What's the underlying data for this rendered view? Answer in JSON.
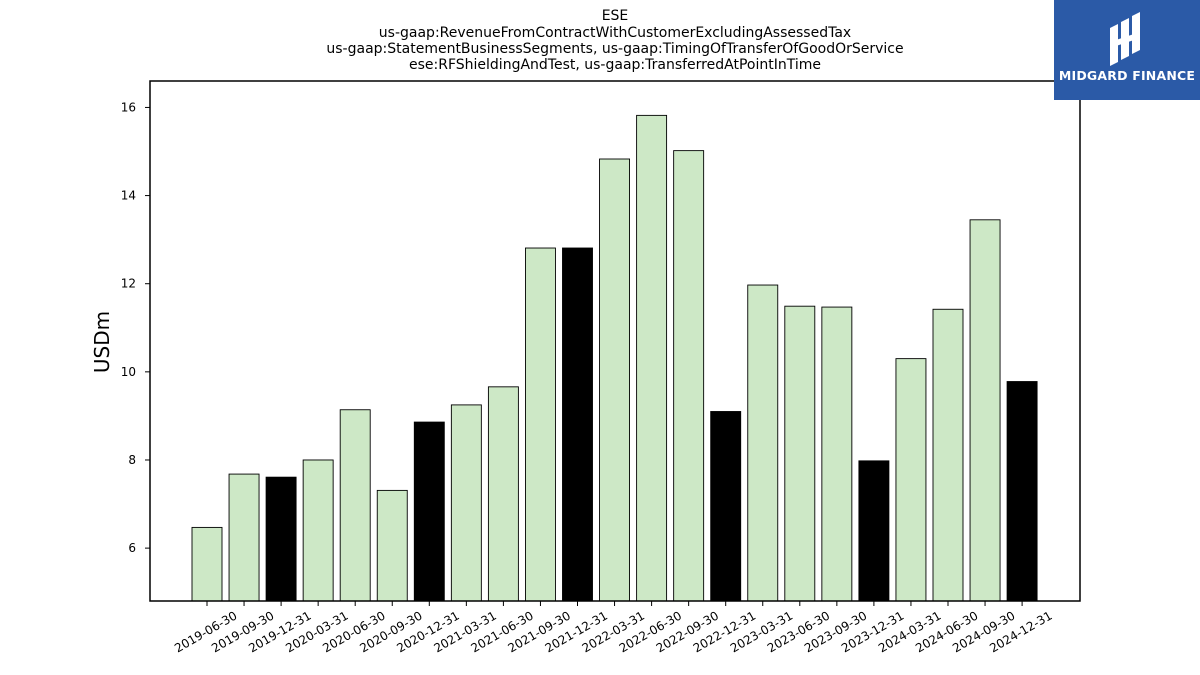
{
  "chart_data": {
    "type": "bar",
    "title_lines": [
      "ESE",
      "us-gaap:RevenueFromContractWithCustomerExcludingAssessedTax",
      "us-gaap:StatementBusinessSegments, us-gaap:TimingOfTransferOfGoodOrService",
      "ese:RFShieldingAndTest, us-gaap:TransferredAtPointInTime"
    ],
    "ylabel": "USDm",
    "xlabel": "",
    "ylim": [
      4.8,
      16.6
    ],
    "yticks": [
      6,
      8,
      10,
      12,
      14,
      16
    ],
    "categories": [
      "2019-06-30",
      "2019-09-30",
      "2019-12-31",
      "2020-03-31",
      "2020-06-30",
      "2020-09-30",
      "2020-12-31",
      "2021-03-31",
      "2021-06-30",
      "2021-09-30",
      "2021-12-31",
      "2022-03-31",
      "2022-06-30",
      "2022-09-30",
      "2022-12-31",
      "2023-03-31",
      "2023-06-30",
      "2023-09-30",
      "2023-12-31",
      "2024-03-31",
      "2024-06-30",
      "2024-09-30",
      "2024-12-31"
    ],
    "values": [
      6.47,
      7.68,
      7.61,
      8.0,
      9.14,
      7.31,
      8.86,
      9.25,
      9.66,
      12.81,
      12.81,
      14.83,
      15.82,
      15.02,
      9.1,
      11.97,
      11.49,
      11.47,
      7.98,
      10.3,
      11.42,
      13.45,
      9.78
    ],
    "highlight": [
      false,
      false,
      true,
      false,
      false,
      false,
      true,
      false,
      false,
      false,
      true,
      false,
      false,
      false,
      true,
      false,
      false,
      false,
      true,
      false,
      false,
      false,
      true
    ],
    "colors": {
      "bar": "#cde8c6",
      "highlight_bar": "#000000",
      "edge": "#000000"
    },
    "grid": false
  },
  "logo": {
    "text": "MIDGARD FINANCE",
    "background": "#2b5aa7"
  }
}
